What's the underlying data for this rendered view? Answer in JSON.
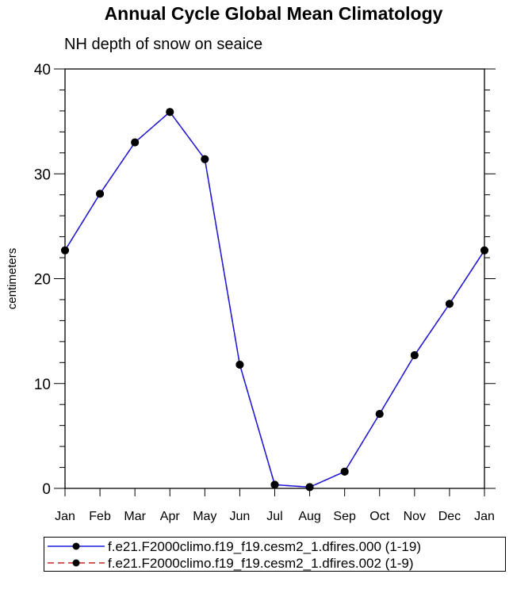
{
  "chart_data": {
    "type": "line",
    "title": "Annual Cycle Global Mean Climatology",
    "subtitle": "NH depth of snow on seaice",
    "xlabel": "",
    "ylabel": "centimeters",
    "categories": [
      "Jan",
      "Feb",
      "Mar",
      "Apr",
      "May",
      "Jun",
      "Jul",
      "Aug",
      "Sep",
      "Oct",
      "Nov",
      "Dec",
      "Jan"
    ],
    "ylim": [
      0,
      40
    ],
    "yticks": [
      0,
      10,
      20,
      30,
      40
    ],
    "series": [
      {
        "name": "f.e21.F2000climo.f19_f19.cesm2_1.dfires.000 (1-19)",
        "color": "#1a1adb",
        "style": "solid",
        "marker": "filled-circle",
        "values": [
          22.7,
          28.1,
          33.0,
          35.9,
          31.4,
          11.8,
          0.35,
          0.12,
          1.6,
          7.1,
          12.7,
          17.6,
          22.7
        ]
      },
      {
        "name": "f.e21.F2000climo.f19_f19.cesm2_1.dfires.002 (1-9)",
        "color": "#cc2222",
        "style": "dashed",
        "marker": "filled-circle",
        "values": [
          22.7,
          28.1,
          33.0,
          35.9,
          31.4,
          11.8,
          0.35,
          0.12,
          1.6,
          7.1,
          12.7,
          17.6,
          22.7
        ]
      }
    ],
    "legend_position": "bottom"
  }
}
